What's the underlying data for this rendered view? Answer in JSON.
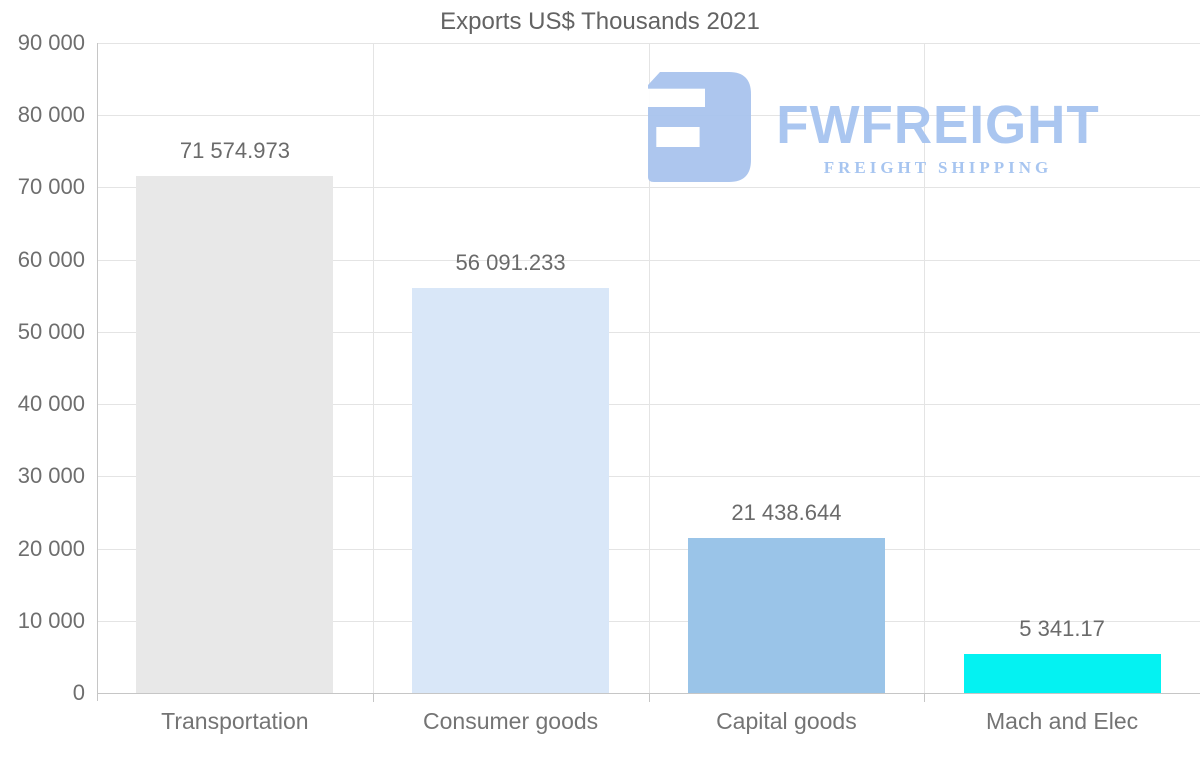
{
  "title": "Exports US$ Thousands 2021",
  "chart_data": {
    "type": "bar",
    "title": "Exports US$ Thousands 2021",
    "categories": [
      "Transportation",
      "Consumer goods",
      "Capital goods",
      "Mach and Elec"
    ],
    "values": [
      71574.973,
      56091.233,
      21438.644,
      5341.17
    ],
    "value_labels": [
      "71 574.973",
      "56 091.233",
      "21 438.644",
      "5 341.17"
    ],
    "bar_colors": [
      "#e8e8e8",
      "#d9e7f8",
      "#9ac4e8",
      "#04f2f2"
    ],
    "xlabel": "",
    "ylabel": "",
    "ylim": [
      0,
      90000
    ],
    "ytick_interval": 10000,
    "ytick_labels": [
      "0",
      "10 000",
      "20 000",
      "30 000",
      "40 000",
      "50 000",
      "60 000",
      "70 000",
      "80 000",
      "90 000"
    ],
    "grid": "horizontal gridlines at each 10 000 plus vertical category separators",
    "legend": "none"
  },
  "watermark": {
    "brand": "FWFREIGHT",
    "tagline": "FREIGHT SHIPPING",
    "logo_icon": "fwfreight-f-mark",
    "color": "#a6c3f0"
  },
  "colors": {
    "background": "#ffffff",
    "title_text": "#636363",
    "axis_text": "#6e6e6e",
    "value_label_text": "#6a6a6a",
    "category_label_text": "#747474",
    "gridline": "#e4e4e4",
    "axis_line": "#c6c6c6"
  }
}
